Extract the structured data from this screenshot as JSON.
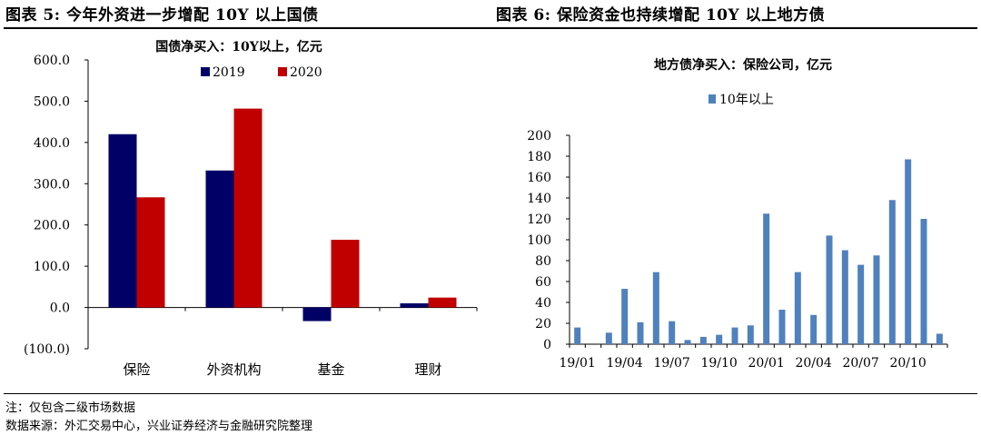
{
  "figures": [
    {
      "title": "图表 5:  今年外资进一步增配 10Y 以上国债"
    },
    {
      "title": "图表 6:  保险资金也持续增配 10Y 以上地方债"
    }
  ],
  "notes": {
    "note": "注：仅包含二级市场数据",
    "source": "数据来源：外汇交易中心，兴业证券经济与金融研究院整理"
  },
  "chart_data": [
    {
      "type": "bar",
      "title": "国债净买入：10Y以上，亿元",
      "categories": [
        "保险",
        "外资机构",
        "基金",
        "理财"
      ],
      "series": [
        {
          "name": "2019",
          "color": "#000066",
          "values": [
            420,
            332,
            -33,
            10
          ]
        },
        {
          "name": "2020",
          "color": "#C00000",
          "values": [
            267,
            482,
            164,
            24
          ]
        }
      ],
      "yticks": [
        "600.0",
        "500.0",
        "400.0",
        "300.0",
        "200.0",
        "100.0",
        "0.0",
        "(100.0)"
      ],
      "ylim": [
        -100,
        600
      ],
      "legend": "top",
      "grid": false
    },
    {
      "type": "bar",
      "title": "地方债净买入：保险公司，亿元",
      "x": [
        "19/01",
        "19/02",
        "19/03",
        "19/04",
        "19/05",
        "19/06",
        "19/07",
        "19/08",
        "19/09",
        "19/10",
        "19/11",
        "19/12",
        "20/01",
        "20/02",
        "20/03",
        "20/04",
        "20/05",
        "20/06",
        "20/07",
        "20/08",
        "20/09",
        "20/10",
        "20/11",
        "20/12"
      ],
      "xticklabels": [
        "19/01",
        "19/04",
        "19/07",
        "19/10",
        "20/01",
        "20/04",
        "20/07",
        "20/10"
      ],
      "series": [
        {
          "name": "10年以上",
          "color": "#4F81BD",
          "values": [
            16,
            0,
            11,
            53,
            21,
            69,
            22,
            4,
            7,
            9,
            16,
            18,
            125,
            33,
            69,
            28,
            104,
            90,
            76,
            85,
            138,
            177,
            120,
            10
          ]
        }
      ],
      "yticks": [
        "200",
        "180",
        "160",
        "140",
        "120",
        "100",
        "80",
        "60",
        "40",
        "20",
        "0"
      ],
      "ylim": [
        0,
        200
      ],
      "legend": "top",
      "grid": false
    }
  ]
}
